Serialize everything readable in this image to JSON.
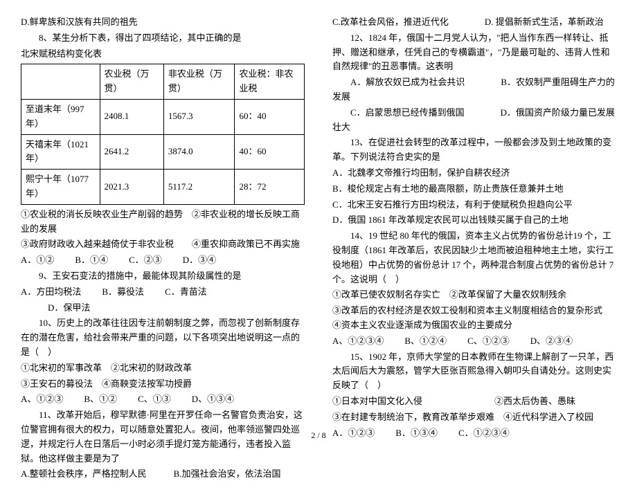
{
  "left": {
    "pre": "D.鲜卑族和汉族有共同的祖先",
    "q8_intro1": "8、某生分析下表，得出了四项结论，其中正确的是",
    "q8_intro2": "北宋赋税结构变化表",
    "table": {
      "headers": [
        "",
        "农业税（万贯）",
        "非农业税（万贯）",
        "农业税：非农业税"
      ],
      "rows": [
        [
          "至道末年（997年）",
          "2408.1",
          "1567.3",
          "60：40"
        ],
        [
          "天禧末年（1021年）",
          "2641.2",
          "3874.0",
          "40：60"
        ],
        [
          "熙宁十年（1077年）",
          "2021.3",
          "5117.2",
          "28：72"
        ]
      ]
    },
    "q8_s1": "①农业税的消长反映农业生产削弱的趋势　②非农业税的增长反映工商业的发展",
    "q8_s2": "③政府财政收入越来越倚仗于非农业税　　④重农抑商政策已不再实施",
    "q8_choices": [
      "A．①②",
      "B．①④",
      "C．②③",
      "D．③④"
    ],
    "q9_intro": "9、王安石变法的措施中，最能体现其阶级属性的是",
    "q9_choices": [
      "A．方田均税法",
      "B．募役法",
      "C．青苗法"
    ],
    "q9_d": "　　　D．保甲法",
    "q10_intro": "10、历史上的改革往往因专注前朝制度之弊，而忽视了创新制度存在的潜在危害，给社会带来严重的问题，以下各项突出地说明这一点的是（　）",
    "q10_s1": "①北宋初的军事改革　②北宋初的财政改革",
    "q10_s2": "③王安石的募役法　④商鞅变法按军功授爵",
    "q10_choices": [
      "A、①②③",
      "B、①②",
      "C、①③",
      "D、①③④"
    ],
    "q11_intro": "11、改革开始后，穆罕默德·阿里在开罗任命一名警官负责治安，这位警官拥有很大的权力，可以随意处置犯人。夜间，他率领巡警四处巡逻，并规定行人在日落后一小时必须手提灯笼方能通行，违者投入监狱。他这样做主要是为了",
    "q11_a": "A.整顿社会秩序，严格控制人民　　　B.加强社会治安，依法治国"
  },
  "right": {
    "q11_c": "C.改革社会风俗，推进近代化　　　　D. 提倡新新式生活，革新政治",
    "q12_intro": "12、1824 年，俄国十二月党人认为，\"把人当作东西一样转让、抵押、赠送和继承，任凭自己的专横霸道\"，\"乃是最可耻的、违背人性和自然规律\"的丑恶事情。这表明",
    "q12_a": "A．解放农奴已成为社会共识　　　　B．农奴制严重阻碍生产力的发展",
    "q12_c": "C．启蒙思想已经传播到俄国　　　　D．俄国资产阶级力量已发展壮大",
    "q13_intro": "13、在促进社会转型的改革过程中，一般都会涉及到土地政策的变革。下列说法符合史实的是",
    "q13_a": "A．北魏孝文帝推行均田制，保护自耕农经济",
    "q13_b": "B．梭伦规定占有土地的最高限额，防止贵族任意兼并土地",
    "q13_c": "C．北宋王安石推行方田均税法，有利于使赋税负担趋向公平",
    "q13_d": "D．俄国 1861 年改革规定农民可以出钱赎买属于自己的土地",
    "q14_intro": "14、19 世纪 80 年代的俄国，资本主义占优势的省份总计19 个，工役制度（1861 年改革后，农民因缺少土地而被迫租种地主土地，实行工役地租）中占优势的省份总计 17 个，两种混合制度占优势的省份总计 7 个。这说明（　）",
    "q14_s1": "①改革已使农奴制名存实亡　②改革保留了大量农奴制残余",
    "q14_s2": "③改革后的农村经济是农奴工役制和资本主义制度相结合的复杂形式　④资本主义农业逐渐成为俄国农业的主要成分",
    "q14_choices": [
      "A、①②③④",
      "B、①②④",
      "C、①②③",
      "D、②③④"
    ],
    "q15_intro": "15、1902 年，京师大学堂的日本教师在生物课上解剖了一只羊，西太后闻后大为震怒，管学大臣张百熙急得入朝叩头自请处分。这则史实反映了（　）",
    "q15_s1": "①日本对中国文化入侵　　　　　　　　②西太后伪善、愚昧",
    "q15_s2": "③在封建专制统治下，教育改革举步艰难　④近代科学进入了校园",
    "q15_choices": [
      "A．①②③",
      "B．①③④",
      "C．①②③④"
    ]
  },
  "footer": "2 / 8"
}
